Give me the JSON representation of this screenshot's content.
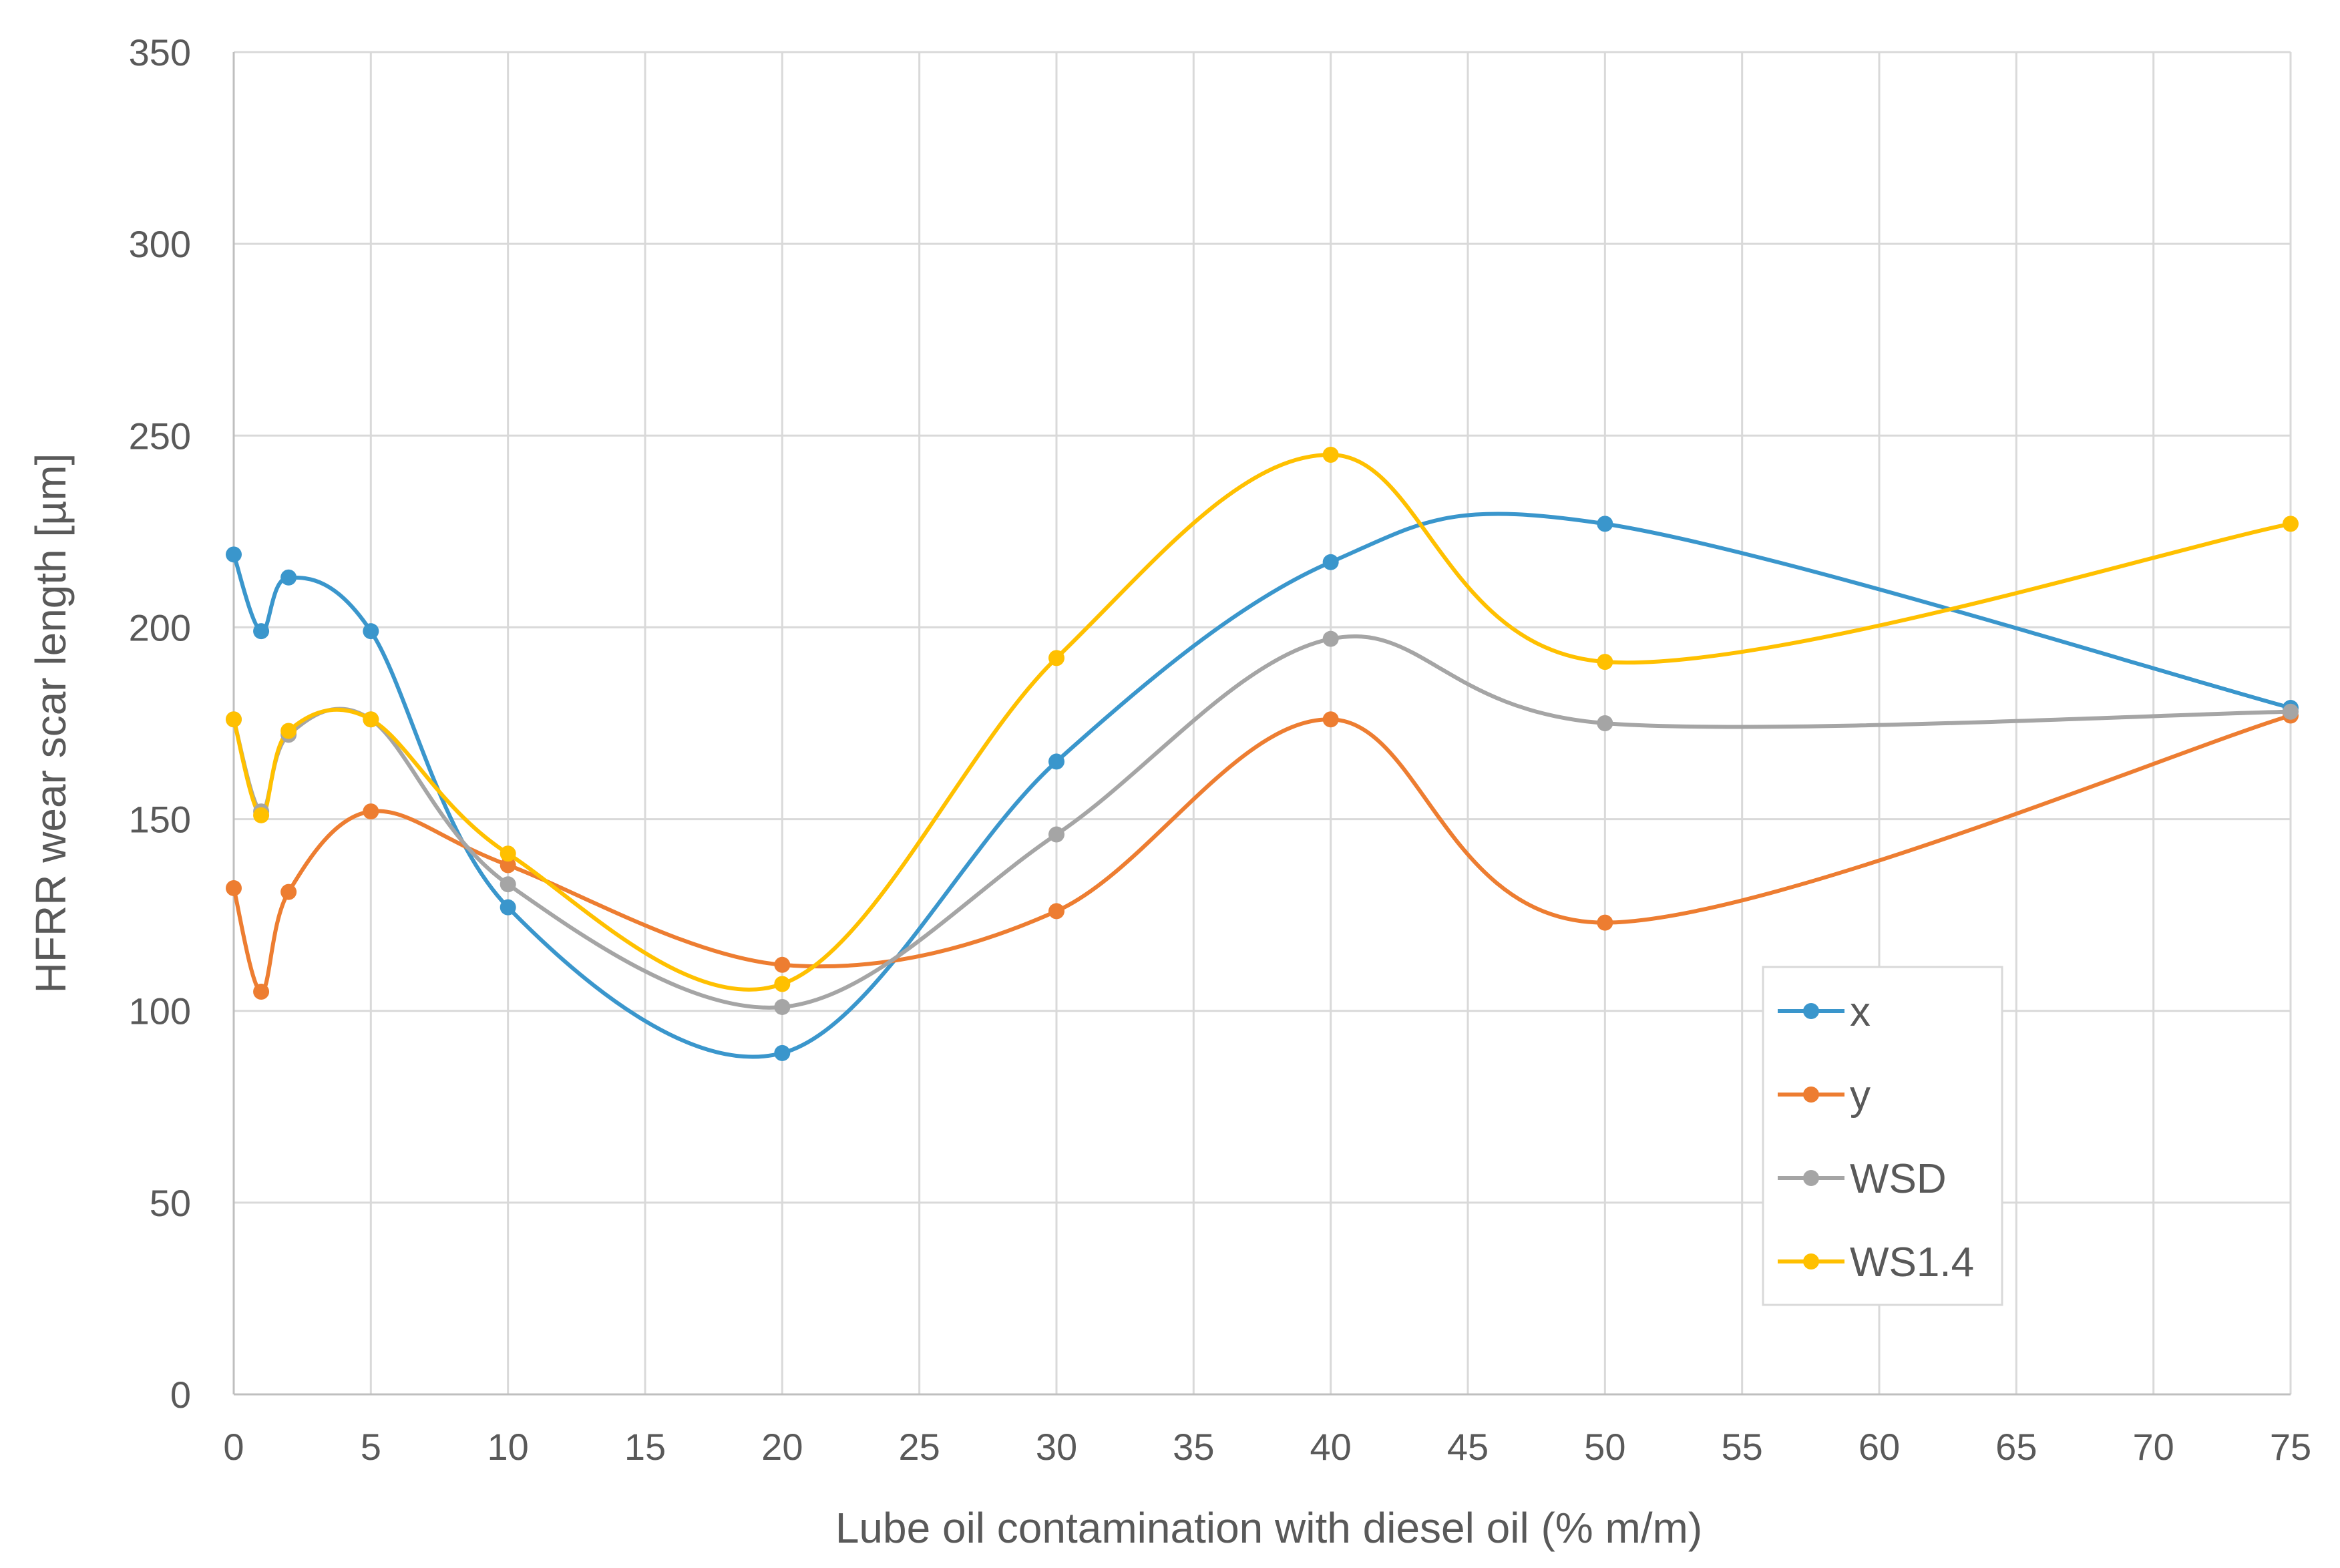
{
  "chart_data": {
    "type": "line",
    "title": "",
    "xlabel": "Lube oil contamination with diesel oil (% m/m)",
    "ylabel": "HFRR wear scar length [µm]",
    "xlim": [
      0,
      75
    ],
    "ylim": [
      0,
      350
    ],
    "xticks": [
      "0",
      "5",
      "10",
      "15",
      "20",
      "25",
      "30",
      "35",
      "40",
      "45",
      "50",
      "55",
      "60",
      "65",
      "70",
      "75"
    ],
    "yticks": [
      "0",
      "50",
      "100",
      "150",
      "200",
      "250",
      "300",
      "350"
    ],
    "x": [
      0,
      1,
      2,
      5,
      10,
      20,
      30,
      40,
      50,
      75
    ],
    "grid": true,
    "smooth": true,
    "legend_position": "lower-right",
    "series": [
      {
        "name": "x",
        "color": "#3a96cc",
        "values": [
          219,
          199,
          213,
          199,
          127,
          89,
          165,
          217,
          227,
          179
        ]
      },
      {
        "name": "y",
        "color": "#ed7d31",
        "values": [
          132,
          105,
          131,
          152,
          138,
          112,
          126,
          176,
          123,
          177
        ]
      },
      {
        "name": "WSD",
        "color": "#a5a5a5",
        "values": [
          176,
          152,
          172,
          176,
          133,
          101,
          146,
          197,
          175,
          178
        ]
      },
      {
        "name": "WS1.4",
        "color": "#ffc000",
        "values": [
          176,
          151,
          173,
          176,
          141,
          107,
          192,
          245,
          191,
          227
        ]
      }
    ]
  }
}
